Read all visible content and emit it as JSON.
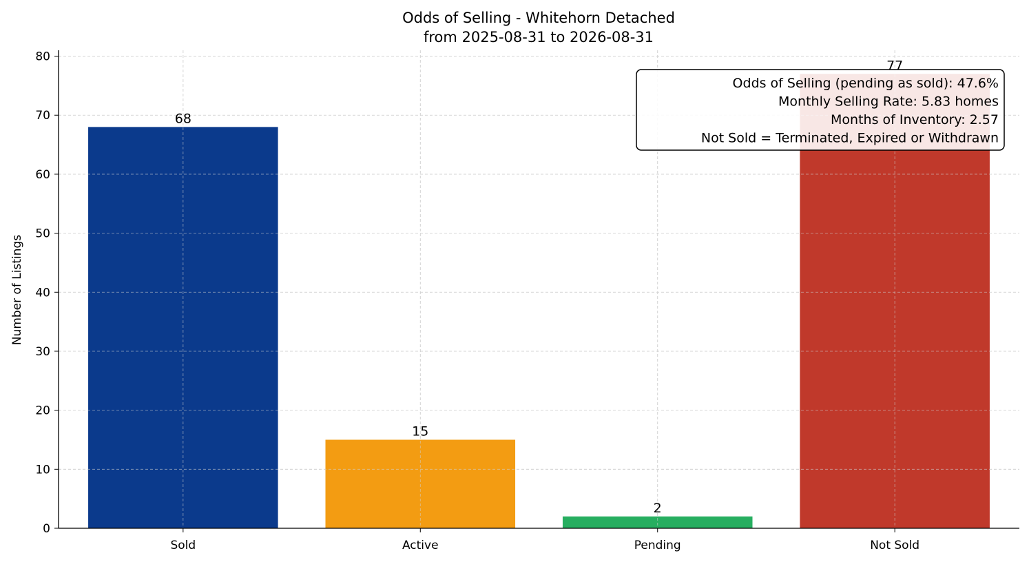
{
  "chart_data": {
    "type": "bar",
    "title": "Odds of Selling - Whitehorn Detached",
    "subtitle": "from 2025-08-31 to 2026-08-31",
    "xlabel": "",
    "ylabel": "Number of Listings",
    "categories": [
      "Sold",
      "Active",
      "Pending",
      "Not Sold"
    ],
    "values": [
      68,
      15,
      2,
      77
    ],
    "colors": [
      "#0b3a8c",
      "#f39c12",
      "#27ae60",
      "#c0392b"
    ],
    "ylim": [
      0,
      81
    ],
    "yticks": [
      0,
      10,
      20,
      30,
      40,
      50,
      60,
      70,
      80
    ],
    "grid": true,
    "legend": "none",
    "annotation": {
      "placement": "top-right",
      "lines": [
        "Odds of Selling (pending as sold): 47.6%",
        "Monthly Selling Rate: 5.83 homes",
        "Months of Inventory: 2.57",
        "Not Sold = Terminated, Expired or Withdrawn"
      ]
    }
  }
}
